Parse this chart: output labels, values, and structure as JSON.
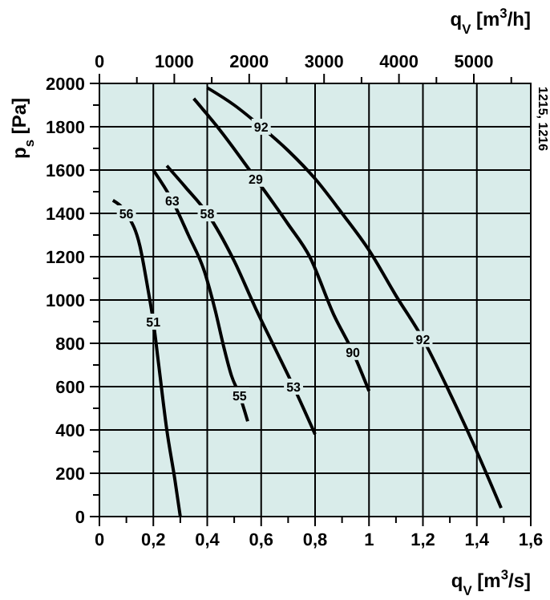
{
  "chart_data": {
    "type": "line",
    "xlabel": "q$_{V}$ [m$^{3}$/s]",
    "x2label": "q$_{V}$ [m$^{3}$/h]",
    "ylabel": "p$_{s}$ [Pa]",
    "xlim": [
      0,
      1.6
    ],
    "ylim": [
      0,
      2000
    ],
    "x2lim": [
      0,
      5760
    ],
    "xticks": [
      0,
      {
        "value": 0.1,
        "label": null
      },
      {
        "value": 0.2,
        "label": "0,2"
      },
      {
        "value": 0.3,
        "label": null
      },
      {
        "value": 0.4,
        "label": "0,4"
      },
      {
        "value": 0.5,
        "label": null
      },
      {
        "value": 0.6,
        "label": "0,6"
      },
      {
        "value": 0.7,
        "label": null
      },
      {
        "value": 0.8,
        "label": "0,8"
      },
      {
        "value": 0.9,
        "label": null
      },
      1,
      {
        "value": 1.1,
        "label": null
      },
      {
        "value": 1.2,
        "label": "1,2"
      },
      {
        "value": 1.3,
        "label": null
      },
      {
        "value": 1.4,
        "label": "1,4"
      },
      {
        "value": 1.5,
        "label": null
      },
      {
        "value": 1.6,
        "label": "1,6"
      }
    ],
    "x2ticks": [
      0,
      {
        "value": 500,
        "label": null
      },
      1000,
      {
        "value": 1500,
        "label": null
      },
      2000,
      {
        "value": 2500,
        "label": null
      },
      3000,
      {
        "value": 3500,
        "label": null
      },
      4000,
      {
        "value": 4500,
        "label": null
      },
      5000,
      {
        "value": 5500,
        "label": null
      }
    ],
    "yticks": [
      0,
      {
        "value": 100,
        "label": null
      },
      200,
      {
        "value": 300,
        "label": null
      },
      400,
      {
        "value": 500,
        "label": null
      },
      600,
      {
        "value": 700,
        "label": null
      },
      800,
      {
        "value": 900,
        "label": null
      },
      1000,
      {
        "value": 1100,
        "label": null
      },
      1200,
      {
        "value": 1300,
        "label": null
      },
      1400,
      {
        "value": 1500,
        "label": null
      },
      1600,
      {
        "value": 1700,
        "label": null
      },
      1800,
      {
        "value": 1900,
        "label": null
      },
      2000
    ],
    "grid": true,
    "series": [
      {
        "color": "#000000",
        "x": [
          0.05,
          0.1,
          0.15,
          0.18,
          0.2,
          0.22,
          0.25,
          0.28,
          0.3
        ],
        "values": [
          1460,
          1400,
          1250,
          1050,
          900,
          700,
          400,
          170,
          0
        ]
      },
      {
        "color": "#000000",
        "x": [
          0.2,
          0.27,
          0.33,
          0.39,
          0.43,
          0.46,
          0.49,
          0.52,
          0.55
        ],
        "values": [
          1600,
          1460,
          1300,
          1130,
          950,
          790,
          650,
          560,
          440
        ]
      },
      {
        "color": "#000000",
        "x": [
          0.25,
          0.32,
          0.4,
          0.5,
          0.58,
          0.65,
          0.72,
          0.8
        ],
        "values": [
          1620,
          1520,
          1400,
          1180,
          960,
          780,
          600,
          380
        ]
      },
      {
        "color": "#000000",
        "x": [
          0.35,
          0.45,
          0.58,
          0.7,
          0.78,
          0.87,
          0.94,
          1.0
        ],
        "values": [
          1930,
          1780,
          1560,
          1350,
          1200,
          930,
          760,
          580
        ]
      },
      {
        "color": "#000000",
        "x": [
          0.4,
          0.5,
          0.6,
          0.7,
          0.8,
          0.9,
          1.0,
          1.1,
          1.2,
          1.3,
          1.4,
          1.49
        ],
        "values": [
          1980,
          1900,
          1800,
          1690,
          1560,
          1400,
          1230,
          1020,
          820,
          570,
          300,
          40
        ]
      }
    ],
    "annotations": [
      {
        "text": "56",
        "x": 0.1,
        "y": 1400
      },
      {
        "text": "51",
        "x": 0.2,
        "y": 900
      },
      {
        "text": "63",
        "x": 0.27,
        "y": 1460
      },
      {
        "text": "58",
        "x": 0.4,
        "y": 1400
      },
      {
        "text": "55",
        "x": 0.52,
        "y": 560
      },
      {
        "text": "53",
        "x": 0.72,
        "y": 600
      },
      {
        "text": "29",
        "x": 0.58,
        "y": 1560
      },
      {
        "text": "92",
        "x": 0.6,
        "y": 1800
      },
      {
        "text": "90",
        "x": 0.94,
        "y": 760
      },
      {
        "text": "92",
        "x": 1.2,
        "y": 820
      },
      "1215, 1216"
    ]
  }
}
